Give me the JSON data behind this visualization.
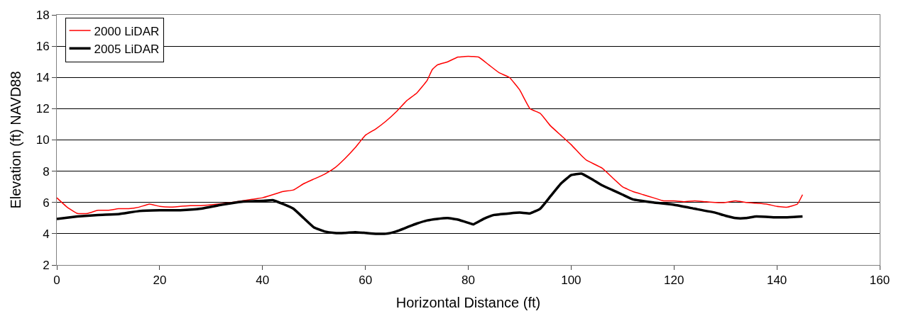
{
  "chart_data": {
    "type": "line",
    "xlabel": "Horizontal Distance (ft)",
    "ylabel": "Elevation (ft) NAVD88",
    "xlim": [
      0,
      160
    ],
    "xticks": [
      0,
      20,
      40,
      60,
      80,
      100,
      120,
      140,
      160
    ],
    "ylim": [
      2,
      18
    ],
    "yticks": [
      2,
      4,
      6,
      8,
      10,
      12,
      14,
      16,
      18
    ],
    "grid": "y",
    "legend": "top left",
    "marker": "none",
    "line_style": "solid",
    "series": [
      {
        "name": "2000 LiDAR",
        "color": "#ff0000",
        "x": [
          0,
          2,
          4,
          6,
          8,
          10,
          12,
          14,
          16,
          18,
          20,
          22,
          24,
          26,
          28,
          30,
          34,
          38,
          40,
          42,
          44,
          46,
          48,
          50,
          52,
          54,
          56,
          58,
          60,
          62,
          64,
          66,
          68,
          70,
          72,
          73,
          74,
          76,
          78,
          80,
          82,
          84,
          86,
          88,
          90,
          92,
          94,
          96,
          98,
          100,
          102,
          103,
          106,
          108,
          110,
          112,
          114,
          116,
          118,
          120,
          122,
          124,
          126,
          128,
          130,
          132,
          134,
          136,
          138,
          140,
          142,
          144,
          145
        ],
        "values": [
          6.3,
          5.7,
          5.3,
          5.3,
          5.5,
          5.5,
          5.6,
          5.6,
          5.7,
          5.9,
          5.75,
          5.7,
          5.75,
          5.8,
          5.8,
          5.85,
          6.0,
          6.2,
          6.3,
          6.5,
          6.7,
          6.8,
          7.2,
          7.5,
          7.8,
          8.2,
          8.8,
          9.5,
          10.3,
          10.7,
          11.2,
          11.8,
          12.5,
          13.0,
          13.8,
          14.5,
          14.8,
          15.0,
          15.3,
          15.35,
          15.3,
          14.8,
          14.3,
          14.0,
          13.2,
          12.0,
          11.7,
          10.9,
          10.3,
          9.7,
          9.0,
          8.7,
          8.2,
          7.6,
          7.0,
          6.7,
          6.5,
          6.3,
          6.1,
          6.1,
          6.05,
          6.1,
          6.05,
          6.0,
          6.0,
          6.1,
          6.0,
          5.95,
          5.9,
          5.75,
          5.7,
          5.9,
          6.5
        ]
      },
      {
        "name": "2005 LiDAR",
        "color": "#000000",
        "x": [
          0,
          4,
          8,
          12,
          16,
          20,
          24,
          28,
          32,
          36,
          40,
          42,
          44,
          46,
          48,
          50,
          52,
          54,
          56,
          58,
          60,
          62,
          64,
          66,
          68,
          70,
          72,
          74,
          76,
          78,
          80,
          81,
          83,
          85,
          88,
          90,
          92,
          94,
          96,
          98,
          100,
          102,
          104,
          106,
          108,
          110,
          112,
          116,
          120,
          124,
          128,
          130,
          132,
          134,
          136,
          140,
          142,
          145
        ],
        "values": [
          4.95,
          5.1,
          5.2,
          5.25,
          5.45,
          5.5,
          5.5,
          5.6,
          5.85,
          6.05,
          6.1,
          6.15,
          5.9,
          5.6,
          5.0,
          4.4,
          4.15,
          4.05,
          4.05,
          4.1,
          4.05,
          4.0,
          4.0,
          4.15,
          4.4,
          4.65,
          4.85,
          4.95,
          5.0,
          4.9,
          4.7,
          4.6,
          4.95,
          5.2,
          5.3,
          5.35,
          5.3,
          5.6,
          6.4,
          7.2,
          7.75,
          7.85,
          7.5,
          7.1,
          6.8,
          6.5,
          6.2,
          6.0,
          5.85,
          5.6,
          5.35,
          5.15,
          5.0,
          5.0,
          5.1,
          5.05,
          5.05,
          5.1
        ]
      }
    ]
  }
}
